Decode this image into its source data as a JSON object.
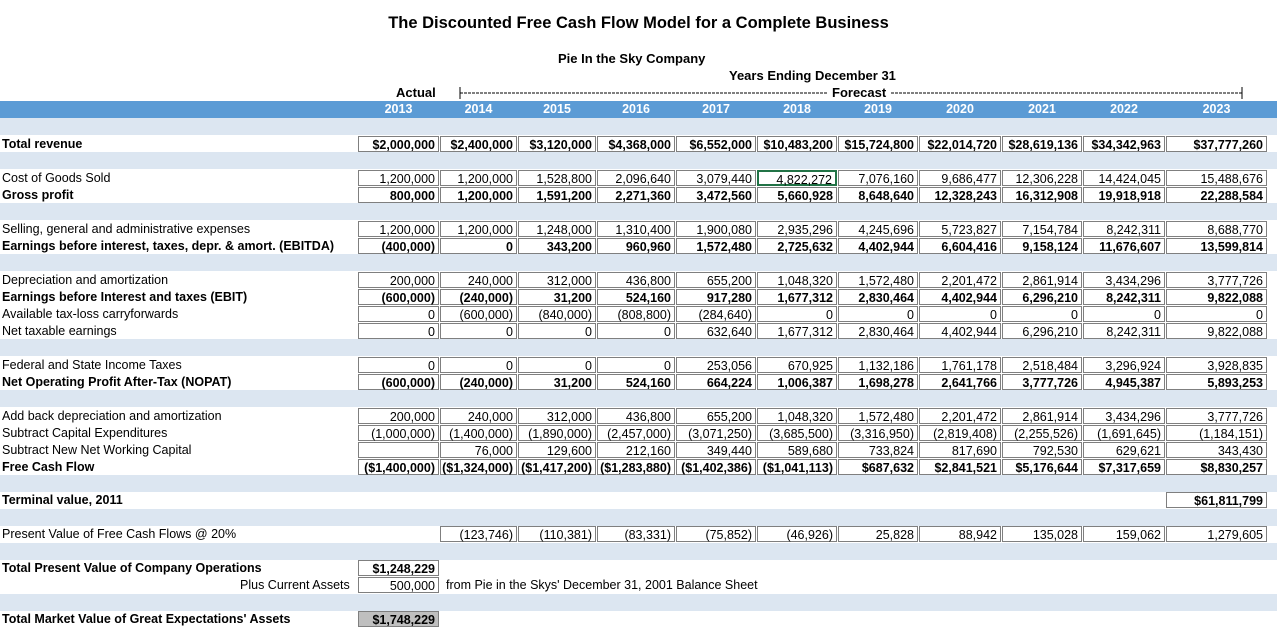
{
  "title": "The Discounted Free Cash Flow Model for a Complete Business",
  "company": "Pie In the Sky Company",
  "period_label": "Years Ending December 31",
  "actual_label": "Actual",
  "forecast_label": "Forecast",
  "years": [
    "2013",
    "2014",
    "2015",
    "2016",
    "2017",
    "2018",
    "2019",
    "2020",
    "2021",
    "2022",
    "2023"
  ],
  "rows": [
    {
      "label": "Total revenue",
      "bold": true,
      "boxed": true,
      "values": [
        "$2,000,000",
        "$2,400,000",
        "$3,120,000",
        "$4,368,000",
        "$6,552,000",
        "$10,483,200",
        "$15,724,800",
        "$22,014,720",
        "$28,619,136",
        "$34,342,963",
        "$37,777,260"
      ]
    },
    {
      "label": "Cost of Goods Sold",
      "bold": false,
      "values": [
        "1,200,000",
        "1,200,000",
        "1,528,800",
        "2,096,640",
        "3,079,440",
        "4,822,272",
        "7,076,160",
        "9,686,477",
        "12,306,228",
        "14,424,045",
        "15,488,676"
      ]
    },
    {
      "label": "Gross profit",
      "bold": true,
      "values": [
        "800,000",
        "1,200,000",
        "1,591,200",
        "2,271,360",
        "3,472,560",
        "5,660,928",
        "8,648,640",
        "12,328,243",
        "16,312,908",
        "19,918,918",
        "22,288,584"
      ]
    },
    {
      "label": "Selling, general and administrative expenses",
      "bold": false,
      "values": [
        "1,200,000",
        "1,200,000",
        "1,248,000",
        "1,310,400",
        "1,900,080",
        "2,935,296",
        "4,245,696",
        "5,723,827",
        "7,154,784",
        "8,242,311",
        "8,688,770"
      ]
    },
    {
      "label": "Earnings before interest, taxes, depr. & amort. (EBITDA)",
      "bold": true,
      "values": [
        "(400,000)",
        "0",
        "343,200",
        "960,960",
        "1,572,480",
        "2,725,632",
        "4,402,944",
        "6,604,416",
        "9,158,124",
        "11,676,607",
        "13,599,814"
      ]
    },
    {
      "label": "Depreciation and amortization",
      "bold": false,
      "values": [
        "200,000",
        "240,000",
        "312,000",
        "436,800",
        "655,200",
        "1,048,320",
        "1,572,480",
        "2,201,472",
        "2,861,914",
        "3,434,296",
        "3,777,726"
      ]
    },
    {
      "label": "Earnings before Interest and taxes (EBIT)",
      "bold": true,
      "values": [
        "(600,000)",
        "(240,000)",
        "31,200",
        "524,160",
        "917,280",
        "1,677,312",
        "2,830,464",
        "4,402,944",
        "6,296,210",
        "8,242,311",
        "9,822,088"
      ]
    },
    {
      "label": "Available tax-loss carryforwards",
      "bold": false,
      "values": [
        "0",
        "(600,000)",
        "(840,000)",
        "(808,800)",
        "(284,640)",
        "0",
        "0",
        "0",
        "0",
        "0",
        "0"
      ]
    },
    {
      "label": "Net taxable earnings",
      "bold": false,
      "values": [
        "0",
        "0",
        "0",
        "0",
        "632,640",
        "1,677,312",
        "2,830,464",
        "4,402,944",
        "6,296,210",
        "8,242,311",
        "9,822,088"
      ]
    },
    {
      "label": "Federal and State Income Taxes",
      "bold": false,
      "values": [
        "0",
        "0",
        "0",
        "0",
        "253,056",
        "670,925",
        "1,132,186",
        "1,761,178",
        "2,518,484",
        "3,296,924",
        "3,928,835"
      ]
    },
    {
      "label": "Net Operating Profit After-Tax (NOPAT)",
      "bold": true,
      "values": [
        "(600,000)",
        "(240,000)",
        "31,200",
        "524,160",
        "664,224",
        "1,006,387",
        "1,698,278",
        "2,641,766",
        "3,777,726",
        "4,945,387",
        "5,893,253"
      ]
    },
    {
      "label": "Add back depreciation and amortization",
      "bold": false,
      "values": [
        "200,000",
        "240,000",
        "312,000",
        "436,800",
        "655,200",
        "1,048,320",
        "1,572,480",
        "2,201,472",
        "2,861,914",
        "3,434,296",
        "3,777,726"
      ]
    },
    {
      "label": "Subtract Capital Expenditures",
      "bold": false,
      "values": [
        "(1,000,000)",
        "(1,400,000)",
        "(1,890,000)",
        "(2,457,000)",
        "(3,071,250)",
        "(3,685,500)",
        "(3,316,950)",
        "(2,819,408)",
        "(2,255,526)",
        "(1,691,645)",
        "(1,184,151)"
      ]
    },
    {
      "label": "Subtract New Net Working Capital",
      "bold": false,
      "values": [
        "",
        "76,000",
        "129,600",
        "212,160",
        "349,440",
        "589,680",
        "733,824",
        "817,690",
        "792,530",
        "629,621",
        "343,430"
      ]
    },
    {
      "label": "Free Cash Flow",
      "bold": true,
      "boxed": true,
      "values": [
        "($1,400,000)",
        "($1,324,000)",
        "($1,417,200)",
        "($1,283,880)",
        "($1,402,386)",
        "($1,041,113)",
        "$687,632",
        "$2,841,521",
        "$5,176,644",
        "$7,317,659",
        "$8,830,257"
      ]
    }
  ],
  "terminal": {
    "label": "Terminal value, 2011",
    "value": "$61,811,799"
  },
  "pv": {
    "label": "Present Value of Free Cash Flows @ 20%",
    "values": [
      "(123,746)",
      "(110,381)",
      "(83,331)",
      "(75,852)",
      "(46,926)",
      "25,828",
      "88,942",
      "135,028",
      "159,062",
      "1,279,605"
    ]
  },
  "total_pv": {
    "label": "Total Present Value of Company Operations",
    "value": "$1,248,229"
  },
  "current_assets": {
    "label": "Plus Current Assets",
    "value": "500,000",
    "note": "from Pie in the Skys' December 31, 2001 Balance Sheet"
  },
  "market_value": {
    "label": "Total Market Value of Great Expectations' Assets",
    "value": "$1,748,229"
  }
}
